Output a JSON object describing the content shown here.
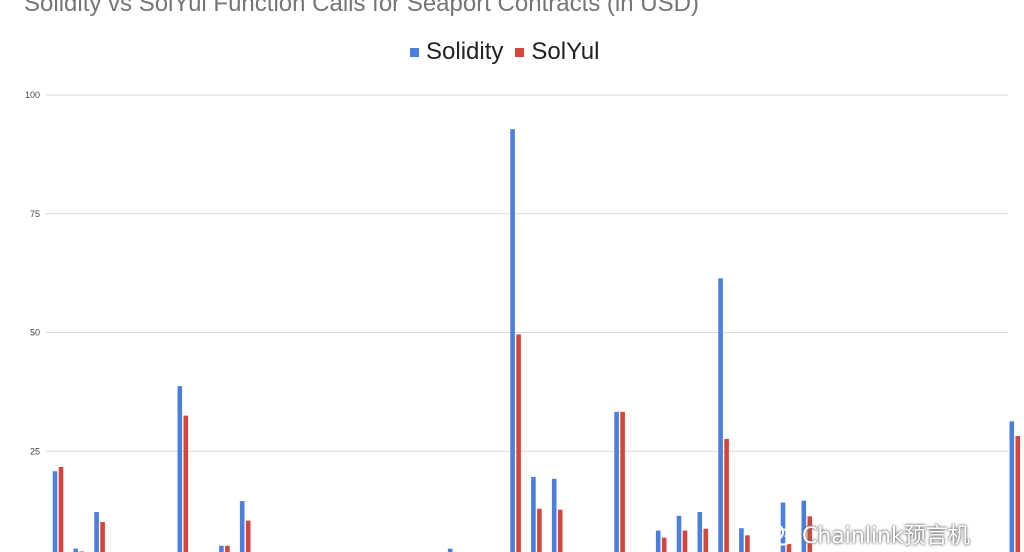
{
  "chart_data": {
    "type": "bar",
    "title": "Solidity vs SolYul Function Calls for Seaport Contracts (in USD)",
    "xlabel": "",
    "ylabel": "",
    "ylim": [
      0,
      100
    ],
    "yticks": [
      25,
      50,
      75,
      100
    ],
    "grid": true,
    "legend": "top-center",
    "series": [
      {
        "name": "Solidity",
        "color": "#4a7fe0",
        "values": [
          20.8,
          4.5,
          12.2,
          0.2,
          0.0,
          0.0,
          38.7,
          0.2,
          5.1,
          14.5,
          0.2,
          0.0,
          0.0,
          0.0,
          0.2,
          0.2,
          0.2,
          0.2,
          0.2,
          4.5,
          0.0,
          0.0,
          92.8,
          19.6,
          19.2,
          0.2,
          0.2,
          33.3,
          0.2,
          8.3,
          11.4,
          12.2,
          61.4,
          8.8,
          0.2,
          14.2,
          14.6,
          0.2,
          0.2,
          0.2,
          0.2,
          0.2,
          0.2,
          0.2,
          0.2,
          0.2,
          31.3
        ],
        "label_note": ""
      },
      {
        "name": "SolYul",
        "color": "#d2463b",
        "values": [
          21.7,
          3.9,
          10.1,
          0.2,
          0.0,
          0.0,
          32.5,
          0.2,
          5.1,
          10.4,
          0.2,
          0.0,
          0.0,
          0.0,
          0.2,
          0.5,
          0.2,
          0.2,
          0.2,
          0.2,
          0.0,
          0.0,
          49.6,
          12.9,
          12.7,
          0.2,
          0.2,
          33.3,
          0.2,
          6.8,
          8.3,
          8.7,
          27.6,
          7.3,
          0.2,
          5.5,
          11.3,
          0.2,
          0.2,
          0.2,
          0.2,
          0.2,
          0.2,
          0.2,
          0.2,
          0.2,
          28.2
        ]
      }
    ]
  },
  "watermark": {
    "text": "Chainlink预言机"
  },
  "colors": {
    "solidity": "#4a7fe0",
    "solyul": "#d2463b",
    "grid": "#d9d9d9",
    "title": "#757575"
  }
}
